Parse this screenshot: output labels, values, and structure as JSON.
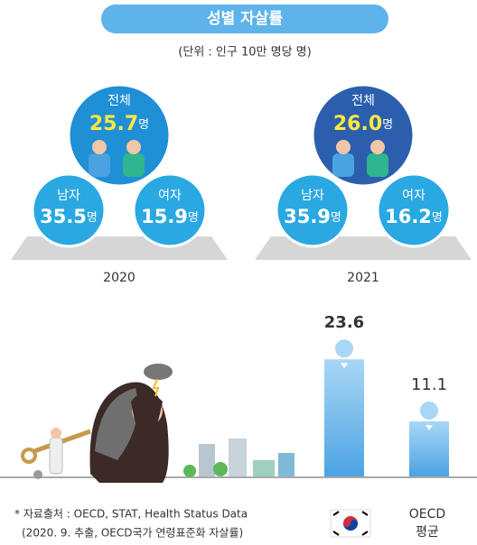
{
  "title": "성별 자살률",
  "unit": "(단위 : 인구 10만 명당 명)",
  "suffix": "명",
  "panels": [
    {
      "year": "2020",
      "total": {
        "label": "전체",
        "value": 25.7
      },
      "male": {
        "label": "남자",
        "value": 35.5
      },
      "female": {
        "label": "여자",
        "value": 15.9
      }
    },
    {
      "year": "2021",
      "total": {
        "label": "전체",
        "value": 26.0,
        "value_label": "26.0"
      },
      "male": {
        "label": "남자",
        "value": 35.9
      },
      "female": {
        "label": "여자",
        "value": 16.2
      }
    }
  ],
  "chart_data": {
    "type": "bar",
    "categories": [
      null,
      "OECD 평균"
    ],
    "values": [
      23.6,
      11.1
    ],
    "ylim": [
      0,
      26
    ]
  },
  "source": [
    "* 자료출처 : OECD, STAT, Health Status Data",
    "(2020. 9. 추출, OECD국가 연령표준화 자살률)"
  ]
}
